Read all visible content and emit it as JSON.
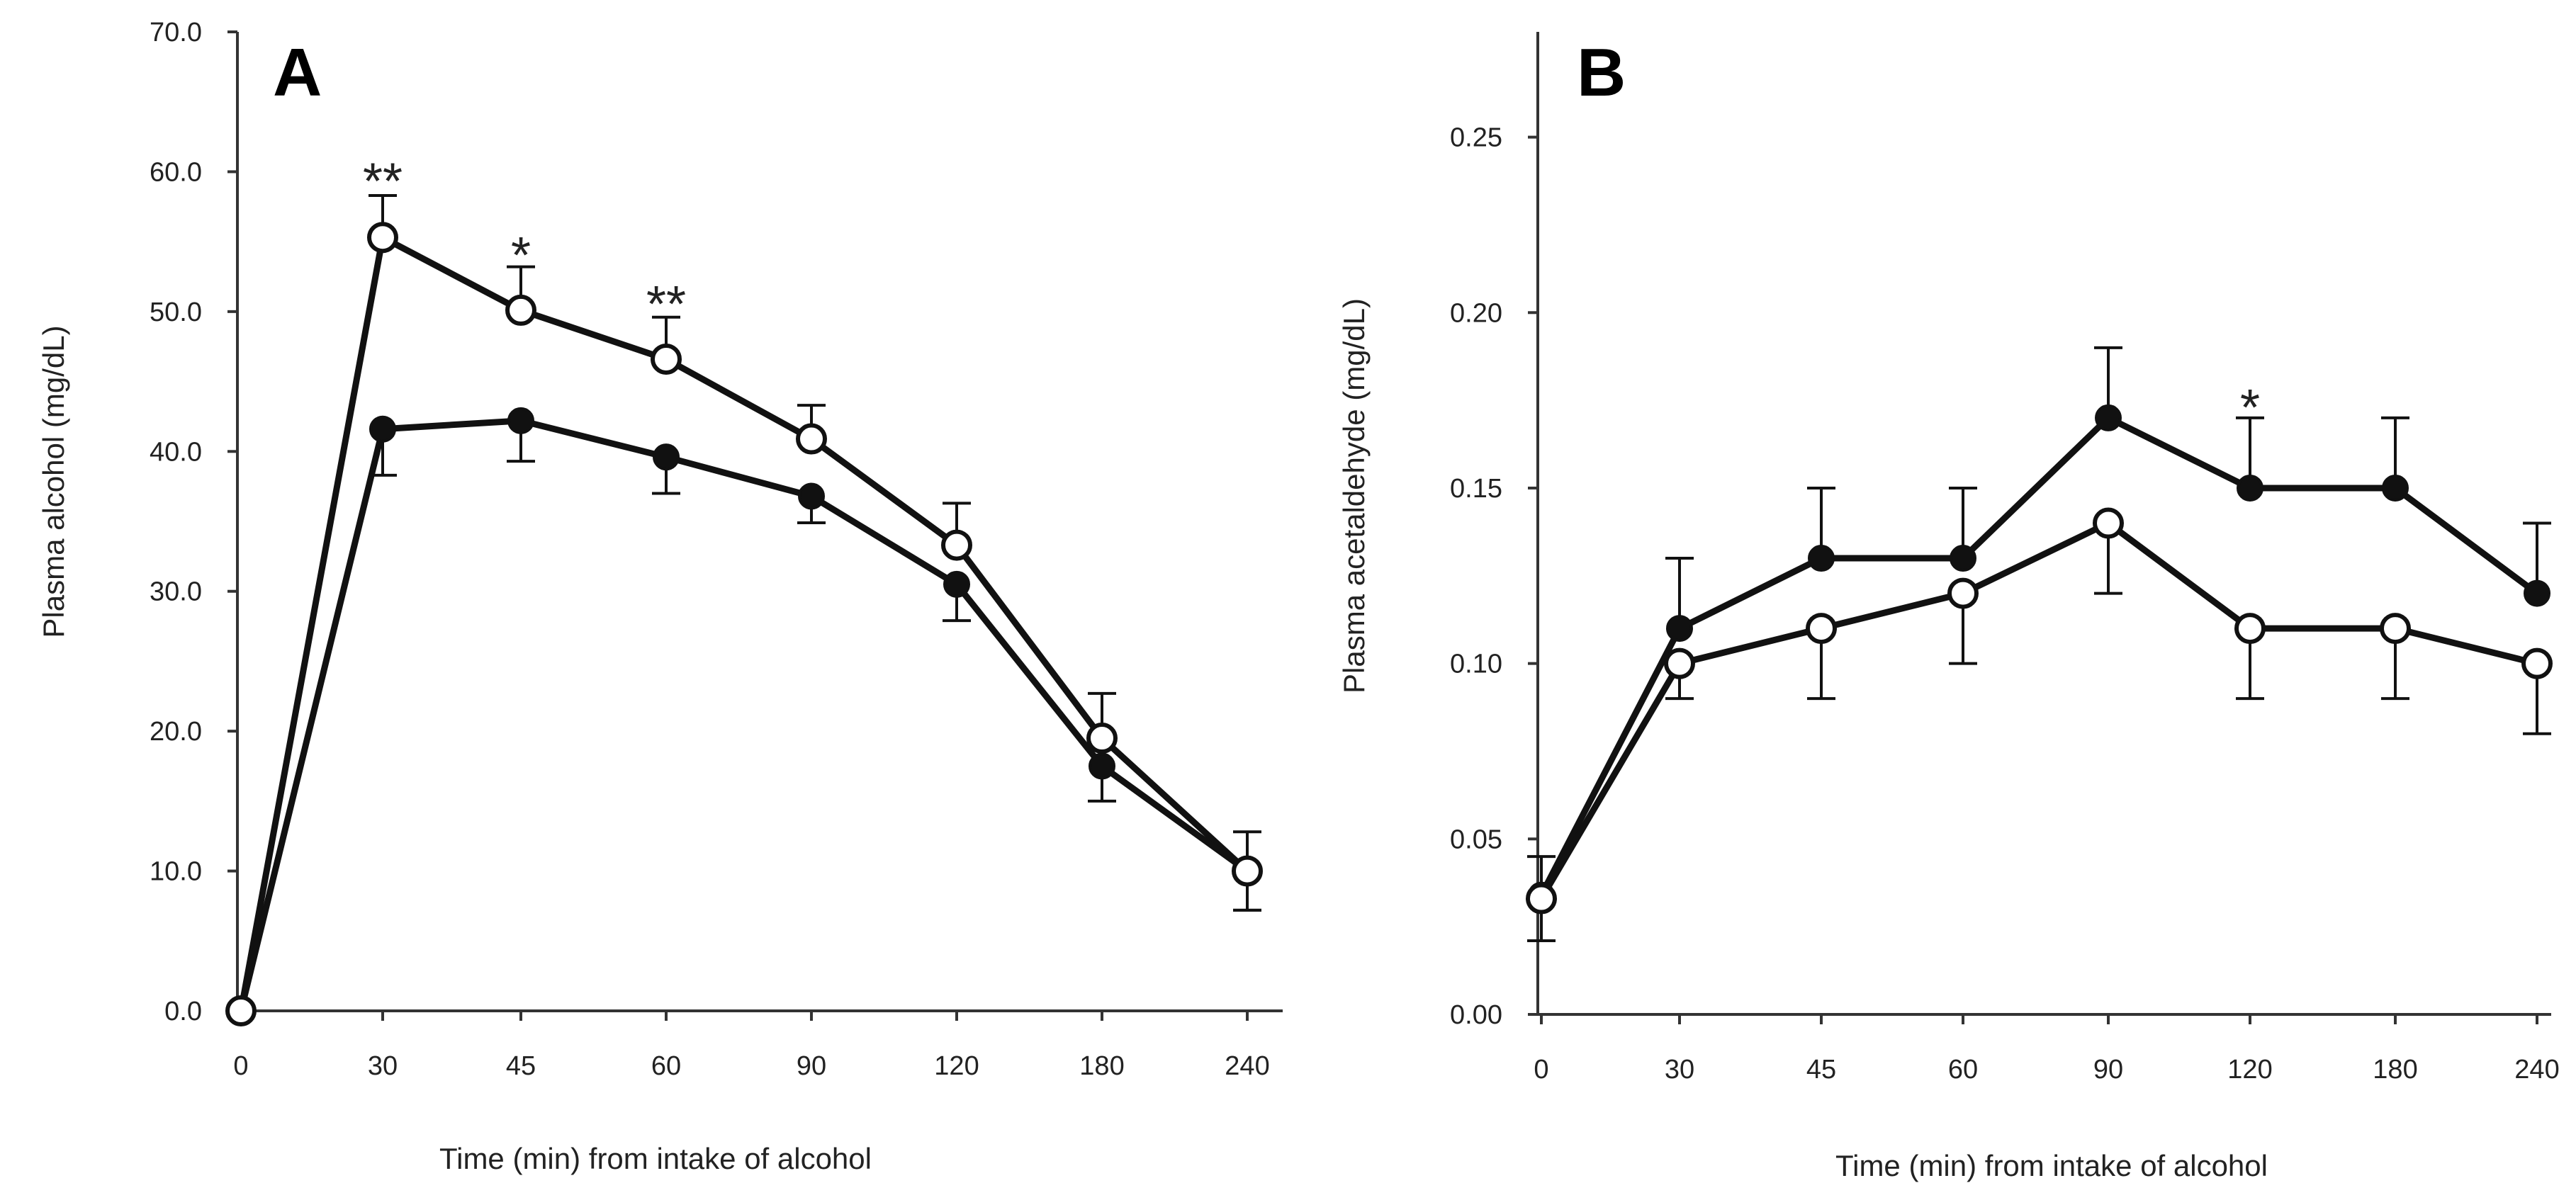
{
  "figure": {
    "background": "#ffffff",
    "line_color": "#111111",
    "filled_marker_color": "#111111",
    "open_marker_fill": "#ffffff"
  },
  "chart_data": [
    {
      "id": "A",
      "type": "line",
      "panel_label": "A",
      "title": "",
      "xlabel": "Time (min) from intake of alcohol",
      "ylabel": "Plasma alcohol (mg/dL)",
      "categories": [
        "0",
        "30",
        "45",
        "60",
        "90",
        "120",
        "180",
        "240"
      ],
      "ylim": [
        0,
        70
      ],
      "yticks": [
        0,
        10,
        20,
        30,
        40,
        50,
        60,
        70
      ],
      "ytick_labels": [
        "0.0",
        "10.0",
        "20.0",
        "30.0",
        "40.0",
        "50.0",
        "60.0",
        "70.0"
      ],
      "grid": false,
      "series": [
        {
          "name": "open-circle series",
          "marker": "open",
          "values": [
            0,
            55.3,
            50.1,
            46.6,
            40.9,
            33.3,
            19.5,
            10.0
          ],
          "error_up": [
            0,
            3.0,
            3.1,
            3.0,
            2.4,
            3.0,
            3.2,
            2.8
          ],
          "error_down": [
            0,
            0,
            0,
            0,
            0,
            0,
            0,
            2.8
          ]
        },
        {
          "name": "filled-circle series",
          "marker": "filled",
          "values": [
            0,
            41.6,
            42.2,
            39.6,
            36.8,
            30.5,
            17.5,
            10.0
          ],
          "error_up": [
            0,
            0,
            0,
            0,
            0,
            0,
            0,
            0
          ],
          "error_down": [
            0,
            3.3,
            2.9,
            2.6,
            1.9,
            2.6,
            2.5,
            2.8
          ]
        }
      ],
      "annotations": [
        {
          "text": "**",
          "category": "30",
          "y": 59.6
        },
        {
          "text": "*",
          "category": "45",
          "y": 54.3
        },
        {
          "text": "**",
          "category": "60",
          "y": 50.8
        }
      ]
    },
    {
      "id": "B",
      "type": "line",
      "panel_label": "B",
      "title": "",
      "xlabel": "Time (min) from intake of alcohol",
      "ylabel": "Plasma acetaldehyde (mg/dL)",
      "categories": [
        "0",
        "30",
        "45",
        "60",
        "90",
        "120",
        "180",
        "240"
      ],
      "ylim": [
        0,
        0.28
      ],
      "yticks": [
        0,
        0.05,
        0.1,
        0.15,
        0.2,
        0.25
      ],
      "ytick_labels": [
        "0.00",
        "0.05",
        "0.10",
        "0.15",
        "0.20",
        "0.25"
      ],
      "grid": false,
      "series": [
        {
          "name": "filled-circle series",
          "marker": "filled",
          "values": [
            0.034,
            0.11,
            0.13,
            0.13,
            0.17,
            0.15,
            0.15,
            0.12
          ],
          "error_up": [
            0.011,
            0.02,
            0.02,
            0.02,
            0.02,
            0.02,
            0.02,
            0.02
          ],
          "error_down": [
            0,
            0,
            0,
            0,
            0,
            0,
            0,
            0
          ]
        },
        {
          "name": "open-circle series",
          "marker": "open",
          "values": [
            0.033,
            0.1,
            0.11,
            0.12,
            0.14,
            0.11,
            0.11,
            0.1
          ],
          "error_up": [
            0,
            0,
            0,
            0,
            0,
            0,
            0,
            0
          ],
          "error_down": [
            0.012,
            0.01,
            0.02,
            0.02,
            0.02,
            0.02,
            0.02,
            0.02
          ]
        }
      ],
      "annotations": [
        {
          "text": "*",
          "category": "120",
          "y": 0.174
        }
      ]
    }
  ]
}
